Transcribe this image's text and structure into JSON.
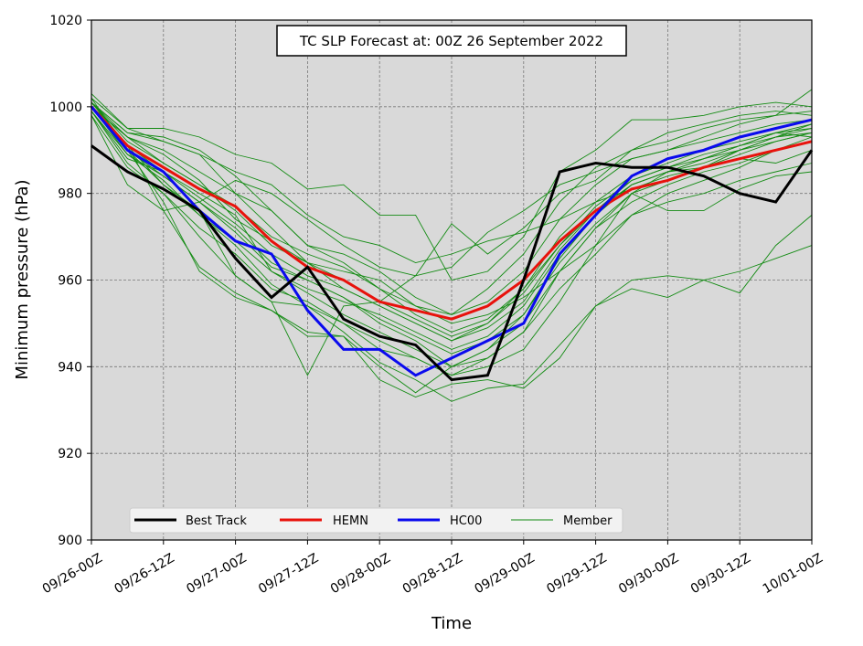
{
  "chart_data": {
    "type": "line",
    "title": "TC SLP Forecast at: 00Z 26 September 2022",
    "xlabel": "Time",
    "ylabel": "Minimum pressure (hPa)",
    "ylim": [
      900,
      1020
    ],
    "yticks": [
      900,
      920,
      940,
      960,
      980,
      1000,
      1020
    ],
    "categories": [
      "09/26-00Z",
      "09/26-06Z",
      "09/26-12Z",
      "09/26-18Z",
      "09/27-00Z",
      "09/27-06Z",
      "09/27-12Z",
      "09/27-18Z",
      "09/28-00Z",
      "09/28-06Z",
      "09/28-12Z",
      "09/28-18Z",
      "09/29-00Z",
      "09/29-06Z",
      "09/29-12Z",
      "09/29-18Z",
      "09/30-00Z",
      "09/30-06Z",
      "09/30-12Z",
      "09/30-18Z",
      "10/01-00Z"
    ],
    "xtick_labels": [
      "09/26-00Z",
      "09/26-12Z",
      "09/27-00Z",
      "09/27-12Z",
      "09/28-00Z",
      "09/28-12Z",
      "09/29-00Z",
      "09/29-12Z",
      "09/30-00Z",
      "09/30-12Z",
      "10/01-00Z"
    ],
    "grid": true,
    "legend_position": "bottom-left",
    "background_color": "#d9d9d9",
    "series": [
      {
        "name": "Best Track",
        "color": "#000000",
        "values": [
          991,
          985,
          981,
          976,
          965,
          956,
          963,
          951,
          947,
          945,
          937,
          938,
          960,
          985,
          987,
          986,
          986,
          984,
          980,
          978,
          990
        ]
      },
      {
        "name": "HEMN",
        "color": "#e8120c",
        "values": [
          1000,
          991,
          986,
          981,
          977,
          969,
          963,
          960,
          955,
          953,
          951,
          954,
          960,
          969,
          976,
          981,
          983,
          986,
          988,
          990,
          992
        ]
      },
      {
        "name": "HC00",
        "color": "#0a0aee",
        "values": [
          1000,
          990,
          985,
          976,
          969,
          966,
          953,
          944,
          944,
          938,
          942,
          946,
          950,
          966,
          975,
          984,
          988,
          990,
          993,
          995,
          997
        ]
      }
    ],
    "member_legend": "Member",
    "member_color": "#138b13",
    "members": [
      [
        1002,
        995,
        995,
        993,
        989,
        987,
        981,
        982,
        975,
        975,
        960,
        962,
        970,
        985,
        990,
        997,
        997,
        998,
        1000,
        1001,
        1000
      ],
      [
        1001,
        994,
        993,
        990,
        984,
        976,
        968,
        966,
        962,
        956,
        952,
        958,
        966,
        978,
        986,
        990,
        994,
        996,
        998,
        999,
        998
      ],
      [
        999,
        988,
        985,
        980,
        975,
        962,
        957,
        952,
        948,
        944,
        940,
        944,
        950,
        962,
        972,
        980,
        985,
        988,
        991,
        994,
        995
      ],
      [
        1000,
        993,
        990,
        985,
        980,
        972,
        964,
        958,
        954,
        950,
        946,
        950,
        958,
        970,
        978,
        984,
        987,
        990,
        992,
        994,
        993
      ],
      [
        998,
        982,
        976,
        963,
        957,
        953,
        948,
        947,
        940,
        934,
        940,
        944,
        952,
        965,
        975,
        982,
        985,
        988,
        991,
        993,
        996
      ],
      [
        1001,
        991,
        976,
        978,
        983,
        980,
        974,
        968,
        963,
        961,
        963,
        971,
        976,
        982,
        985,
        988,
        990,
        993,
        996,
        998,
        999
      ],
      [
        1000,
        989,
        983,
        975,
        969,
        962,
        958,
        955,
        952,
        948,
        944,
        947,
        954,
        966,
        975,
        982,
        985,
        986,
        990,
        993,
        994
      ],
      [
        1001,
        994,
        992,
        989,
        980,
        976,
        968,
        964,
        958,
        954,
        950,
        952,
        956,
        962,
        968,
        975,
        980,
        983,
        986,
        990,
        992
      ],
      [
        1002,
        990,
        984,
        978,
        972,
        964,
        960,
        956,
        950,
        946,
        940,
        942,
        948,
        958,
        966,
        975,
        978,
        980,
        983,
        985,
        987
      ],
      [
        998,
        986,
        980,
        970,
        961,
        955,
        954,
        950,
        944,
        942,
        938,
        940,
        944,
        955,
        968,
        980,
        976,
        976,
        981,
        984,
        985
      ],
      [
        1000,
        993,
        989,
        983,
        974,
        969,
        964,
        962,
        960,
        954,
        952,
        955,
        962,
        974,
        982,
        988,
        990,
        992,
        994,
        996,
        997
      ],
      [
        1001,
        992,
        987,
        982,
        977,
        970,
        966,
        963,
        958,
        952,
        948,
        951,
        958,
        968,
        976,
        983,
        986,
        988,
        990,
        993,
        995
      ],
      [
        999,
        987,
        980,
        972,
        966,
        958,
        955,
        950,
        946,
        942,
        938,
        942,
        948,
        962,
        972,
        978,
        982,
        985,
        987,
        990,
        993
      ],
      [
        1000,
        991,
        985,
        979,
        973,
        966,
        961,
        958,
        954,
        950,
        946,
        949,
        955,
        967,
        976,
        982,
        985,
        987,
        990,
        992,
        994
      ],
      [
        1003,
        995,
        992,
        989,
        985,
        982,
        975,
        970,
        968,
        964,
        966,
        969,
        971,
        974,
        978,
        981,
        984,
        986,
        988,
        987,
        990
      ],
      [
        1000,
        990,
        982,
        976,
        961,
        955,
        938,
        954,
        955,
        961,
        973,
        966,
        972,
        980,
        983,
        990,
        992,
        995,
        997,
        998,
        1004
      ],
      [
        999,
        989,
        984,
        978,
        971,
        963,
        960,
        956,
        951,
        947,
        943,
        946,
        952,
        964,
        973,
        980,
        983,
        986,
        989,
        992,
        994
      ],
      [
        1001,
        993,
        987,
        982,
        976,
        968,
        964,
        960,
        955,
        951,
        947,
        950,
        957,
        968,
        977,
        983,
        986,
        989,
        991,
        994,
        996
      ],
      [
        1000,
        990,
        978,
        962,
        956,
        953,
        947,
        947,
        937,
        933,
        936,
        937,
        935,
        942,
        954,
        960,
        961,
        960,
        957,
        968,
        975
      ],
      [
        1001,
        991,
        982,
        975,
        968,
        959,
        954,
        948,
        941,
        937,
        932,
        935,
        936,
        945,
        954,
        958,
        956,
        960,
        962,
        965,
        968
      ]
    ]
  }
}
